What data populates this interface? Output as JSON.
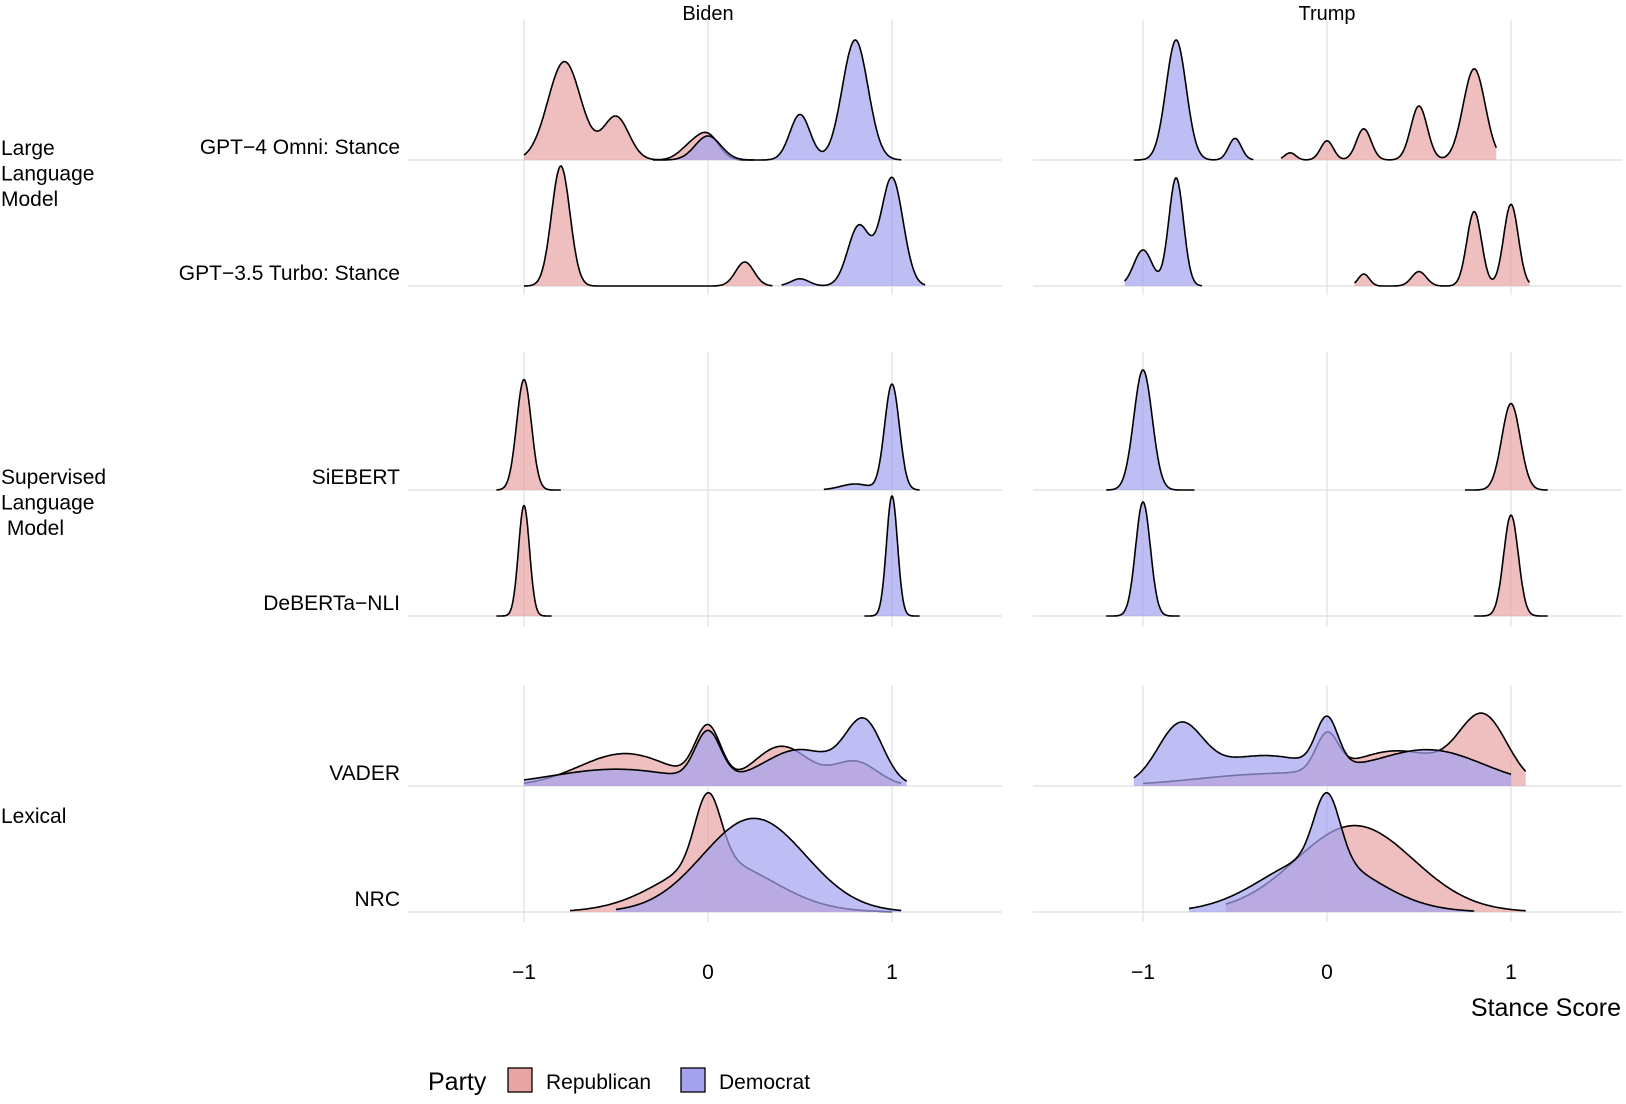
{
  "chart_data": {
    "type": "ridgeline-density",
    "facets": [
      "Biden",
      "Trump"
    ],
    "xlabel": "Stance Score",
    "xlim": [
      -1.5,
      1.5
    ],
    "x_ticks": [
      {
        "value": -1,
        "label": "−1"
      },
      {
        "value": 0,
        "label": "0"
      },
      {
        "value": 1,
        "label": "1"
      }
    ],
    "legend": {
      "title": "Party",
      "position": "bottom",
      "entries": [
        {
          "name": "Republican",
          "color": "#e8a3a3"
        },
        {
          "name": "Democrat",
          "color": "#a3a3f0"
        }
      ]
    },
    "colors": {
      "Republican": "#e8a3a3",
      "Democrat": "#a3a3f0",
      "overlap": "#c98aa8"
    },
    "groups": [
      {
        "label": "Large\nLanguage\nModel",
        "rows": [
          "GPT−4 Omni: Stance",
          "GPT−3.5 Turbo: Stance"
        ]
      },
      {
        "label": "Supervised\nLanguage\n Model",
        "rows": [
          "SiEBERT",
          "DeBERTa−NLI"
        ]
      },
      {
        "label": "Lexical",
        "rows": [
          "VADER",
          "NRC"
        ]
      }
    ],
    "rows": [
      {
        "name": "GPT−4 Omni: Stance",
        "Biden": {
          "Republican": {
            "range": [
              -1,
              0.25
            ],
            "peaks": [
              [
                -0.78,
                0.09,
                0.82
              ],
              [
                -0.5,
                0.07,
                0.36
              ],
              [
                -0.1,
                0.06,
                0.1
              ],
              [
                0,
                0.06,
                0.2
              ]
            ]
          },
          "Democrat": {
            "range": [
              -0.3,
              1.05
            ],
            "peaks": [
              [
                0,
                0.07,
                0.2
              ],
              [
                0.5,
                0.055,
                0.38
              ],
              [
                0.8,
                0.07,
                1.0
              ]
            ]
          }
        },
        "Trump": {
          "Democrat": {
            "range": [
              -1.05,
              -0.4
            ],
            "peaks": [
              [
                -0.82,
                0.055,
                1.0
              ],
              [
                -0.5,
                0.035,
                0.18
              ]
            ]
          },
          "Republican": {
            "range": [
              -0.25,
              0.92
            ],
            "peaks": [
              [
                -0.2,
                0.03,
                0.06
              ],
              [
                0,
                0.035,
                0.16
              ],
              [
                0.2,
                0.04,
                0.26
              ],
              [
                0.5,
                0.045,
                0.45
              ],
              [
                0.8,
                0.06,
                0.76
              ]
            ]
          }
        }
      },
      {
        "name": "GPT−3.5 Turbo: Stance",
        "Biden": {
          "Republican": {
            "range": [
              -1.0,
              0.35
            ],
            "peaks": [
              [
                -0.8,
                0.05,
                1.0
              ],
              [
                0.2,
                0.05,
                0.2
              ]
            ]
          },
          "Democrat": {
            "range": [
              0.4,
              1.18
            ],
            "peaks": [
              [
                0.5,
                0.05,
                0.06
              ],
              [
                0.82,
                0.06,
                0.5
              ],
              [
                1.0,
                0.06,
                0.9
              ]
            ]
          }
        },
        "Trump": {
          "Democrat": {
            "range": [
              -1.1,
              -0.68
            ],
            "peaks": [
              [
                -1.0,
                0.05,
                0.3
              ],
              [
                -0.82,
                0.04,
                0.9
              ]
            ]
          },
          "Republican": {
            "range": [
              0.15,
              1.1
            ],
            "peaks": [
              [
                0.2,
                0.03,
                0.1
              ],
              [
                0.5,
                0.04,
                0.12
              ],
              [
                0.8,
                0.04,
                0.62
              ],
              [
                1.0,
                0.04,
                0.68
              ]
            ]
          }
        }
      },
      {
        "name": "SiEBERT",
        "Biden": {
          "Republican": {
            "range": [
              -1.15,
              -0.8
            ],
            "peaks": [
              [
                -1.0,
                0.04,
                0.92
              ]
            ]
          },
          "Democrat": {
            "range": [
              0.63,
              1.15
            ],
            "peaks": [
              [
                1.0,
                0.04,
                0.88
              ],
              [
                0.8,
                0.08,
                0.05
              ]
            ]
          }
        },
        "Trump": {
          "Democrat": {
            "range": [
              -1.2,
              -0.72
            ],
            "peaks": [
              [
                -1.0,
                0.05,
                1.0
              ]
            ]
          },
          "Republican": {
            "range": [
              0.75,
              1.2
            ],
            "peaks": [
              [
                1.0,
                0.05,
                0.72
              ]
            ]
          }
        }
      },
      {
        "name": "DeBERTa−NLI",
        "Biden": {
          "Republican": {
            "range": [
              -1.15,
              -0.85
            ],
            "peaks": [
              [
                -1.0,
                0.03,
                0.92
              ]
            ]
          },
          "Democrat": {
            "range": [
              0.85,
              1.15
            ],
            "peaks": [
              [
                1.0,
                0.03,
                1.0
              ]
            ]
          }
        },
        "Trump": {
          "Democrat": {
            "range": [
              -1.2,
              -0.8
            ],
            "peaks": [
              [
                -1.0,
                0.04,
                0.95
              ]
            ]
          },
          "Republican": {
            "range": [
              0.8,
              1.2
            ],
            "peaks": [
              [
                1.0,
                0.04,
                0.84
              ]
            ]
          }
        }
      },
      {
        "name": "VADER",
        "Biden": {
          "Republican": {
            "range": [
              -1.0,
              1.05
            ],
            "peaks": [
              [
                -0.45,
                0.25,
                0.27
              ],
              [
                0,
                0.07,
                0.45
              ],
              [
                0.4,
                0.15,
                0.33
              ],
              [
                0.8,
                0.12,
                0.2
              ]
            ]
          },
          "Democrat": {
            "range": [
              -1.0,
              1.08
            ],
            "peaks": [
              [
                -0.5,
                0.35,
                0.14
              ],
              [
                0,
                0.07,
                0.4
              ],
              [
                0.5,
                0.2,
                0.3
              ],
              [
                0.85,
                0.1,
                0.5
              ]
            ]
          }
        },
        "Trump": {
          "Democrat": {
            "range": [
              -1.05,
              1.0
            ],
            "peaks": [
              [
                -0.8,
                0.12,
                0.45
              ],
              [
                -0.35,
                0.3,
                0.25
              ],
              [
                0,
                0.06,
                0.4
              ],
              [
                0.55,
                0.3,
                0.3
              ]
            ]
          },
          "Republican": {
            "range": [
              -1.0,
              1.08
            ],
            "peaks": [
              [
                -0.3,
                0.4,
                0.1
              ],
              [
                0,
                0.06,
                0.3
              ],
              [
                0.4,
                0.25,
                0.27
              ],
              [
                0.85,
                0.13,
                0.55
              ]
            ]
          }
        }
      },
      {
        "name": "NRC",
        "Biden": {
          "Republican": {
            "range": [
              -0.75,
              1.0
            ],
            "peaks": [
              [
                0,
                0.07,
                0.58
              ],
              [
                0.05,
                0.3,
                0.42
              ]
            ]
          },
          "Democrat": {
            "range": [
              -0.5,
              1.05
            ],
            "peaks": [
              [
                0.25,
                0.28,
                0.78
              ]
            ]
          }
        },
        "Trump": {
          "Democrat": {
            "range": [
              -0.75,
              0.8
            ],
            "peaks": [
              [
                0,
                0.07,
                0.55
              ],
              [
                -0.05,
                0.3,
                0.45
              ]
            ]
          },
          "Republican": {
            "range": [
              -0.55,
              1.08
            ],
            "peaks": [
              [
                0.15,
                0.32,
                0.72
              ]
            ]
          }
        }
      }
    ]
  }
}
